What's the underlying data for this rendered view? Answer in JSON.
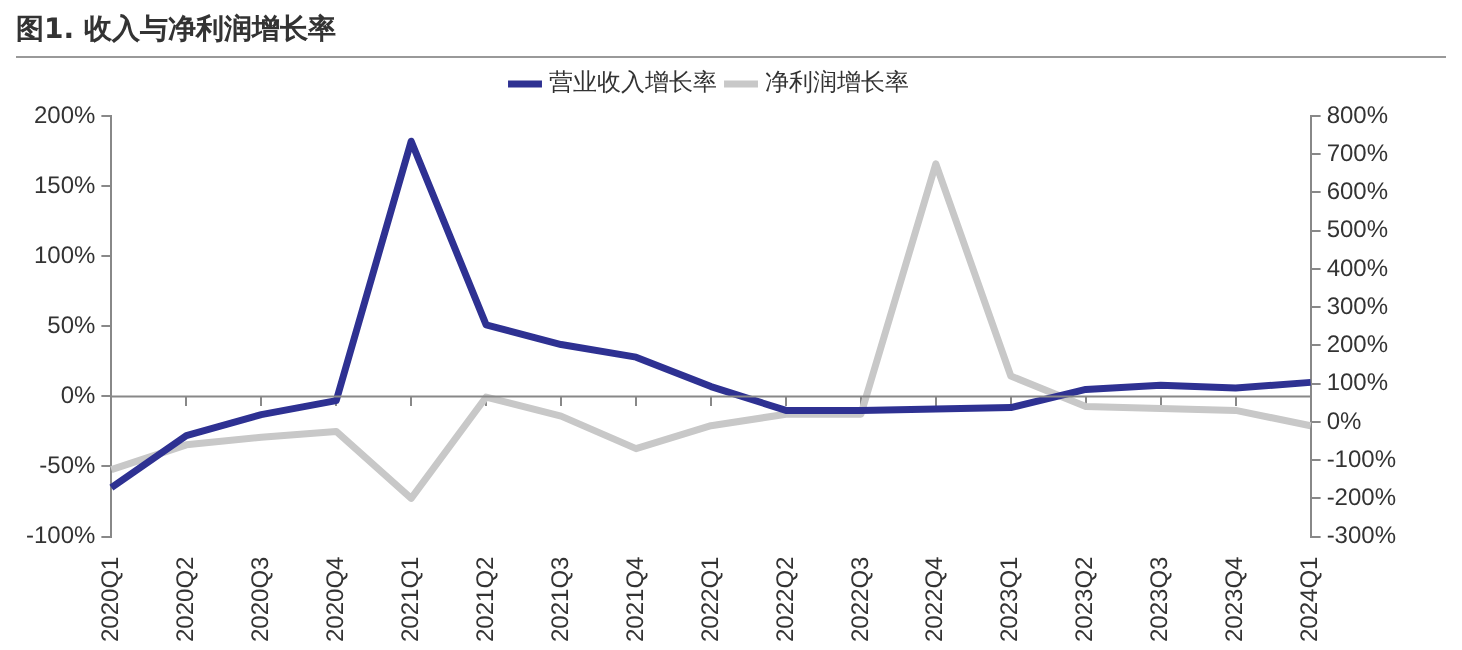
{
  "chart_data": {
    "type": "line",
    "title": "图1. 收入与净利润增长率",
    "categories": [
      "2020Q1",
      "2020Q2",
      "2020Q3",
      "2020Q4",
      "2021Q1",
      "2021Q2",
      "2021Q3",
      "2021Q4",
      "2022Q1",
      "2022Q2",
      "2022Q3",
      "2022Q4",
      "2023Q1",
      "2023Q2",
      "2023Q3",
      "2023Q4",
      "2024Q1"
    ],
    "series": [
      {
        "name": "营业收入增长率",
        "color": "#2e3192",
        "values": [
          -65,
          -28,
          -13,
          -3,
          182,
          51,
          37,
          28,
          7,
          -10,
          -10,
          -9,
          -8,
          5,
          8,
          6,
          10
        ]
      },
      {
        "name": "净利润增长率",
        "color": "#c8c8c8",
        "axis": "y2",
        "values": [
          -125,
          -60,
          -40,
          -25,
          -200,
          65,
          15,
          -70,
          -10,
          20,
          20,
          675,
          120,
          40,
          35,
          30,
          -10
        ]
      }
    ],
    "ylim": [
      -100,
      200
    ],
    "yticks": [
      {
        "value": -100,
        "label": "-100%"
      },
      {
        "value": -50,
        "label": "-50%"
      },
      {
        "value": 0,
        "label": "0%"
      },
      {
        "value": 50,
        "label": "50%"
      },
      {
        "value": 100,
        "label": "100%"
      },
      {
        "value": 150,
        "label": "150%"
      },
      {
        "value": 200,
        "label": "200%"
      }
    ],
    "y2lim": [
      -300,
      800
    ],
    "y2ticks": [
      {
        "value": -300,
        "label": "-300%"
      },
      {
        "value": -200,
        "label": "-200%"
      },
      {
        "value": -100,
        "label": "-100%"
      },
      {
        "value": 0,
        "label": "0%"
      },
      {
        "value": 100,
        "label": "100%"
      },
      {
        "value": 200,
        "label": "200%"
      },
      {
        "value": 300,
        "label": "300%"
      },
      {
        "value": 400,
        "label": "400%"
      },
      {
        "value": 500,
        "label": "500%"
      },
      {
        "value": 600,
        "label": "600%"
      },
      {
        "value": 700,
        "label": "700%"
      },
      {
        "value": 800,
        "label": "800%"
      }
    ],
    "ref_lines": [
      {
        "axis": "y",
        "value": 0,
        "color": "#888888"
      }
    ],
    "grid": false,
    "legend": "top",
    "marker": "none",
    "line_style": "solid"
  }
}
